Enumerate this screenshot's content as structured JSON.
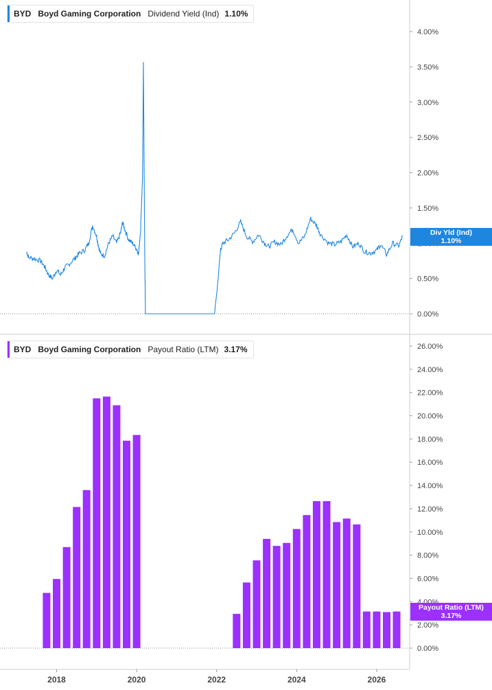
{
  "colors": {
    "yield": "#1f86e0",
    "payout": "#9b30ff",
    "grid": "#888888",
    "axis": "#cccccc",
    "text": "#444444"
  },
  "top_legend": {
    "ticker": "BYD",
    "company": "Boyd Gaming Corporation",
    "metric": "Dividend Yield (Ind)",
    "value": "1.10%"
  },
  "bottom_legend": {
    "ticker": "BYD",
    "company": "Boyd Gaming Corporation",
    "metric": "Payout Ratio (LTM)",
    "value": "3.17%"
  },
  "top_tag": {
    "label": "Div Yld (Ind)",
    "value": "1.10%"
  },
  "bottom_tag": {
    "label": "Payout Ratio (LTM)",
    "value": "3.17%"
  },
  "chart_data": [
    {
      "type": "line",
      "ylim": [
        0,
        4
      ],
      "yticks": [
        "0.00%",
        "0.50%",
        "1.00%",
        "1.50%",
        "2.00%",
        "2.50%",
        "3.00%",
        "3.50%",
        "4.00%"
      ],
      "ytick_values": [
        0,
        0.5,
        1,
        1.5,
        2,
        2.5,
        3,
        3.5,
        4
      ],
      "xlim": [
        2017.0,
        2027.0
      ],
      "series": [
        {
          "x": [
            2017.25,
            2017.3,
            2017.45,
            2017.6,
            2017.7,
            2017.8,
            2017.9,
            2018.0,
            2018.1,
            2018.2,
            2018.3,
            2018.45,
            2018.55,
            2018.7,
            2018.8,
            2018.9,
            2019.0,
            2019.05,
            2019.1,
            2019.2,
            2019.3,
            2019.4,
            2019.5,
            2019.6,
            2019.65,
            2019.7,
            2019.8,
            2019.9,
            2020.0,
            2020.05,
            2020.1,
            2020.15,
            2020.17,
            2020.2,
            2020.22,
            2020.25,
            2021.95,
            2022.1,
            2022.15,
            2022.3,
            2022.45,
            2022.6,
            2022.75,
            2022.9,
            2023.05,
            2023.2,
            2023.3,
            2023.45,
            2023.6,
            2023.75,
            2023.9,
            2024.05,
            2024.2,
            2024.35,
            2024.5,
            2024.6,
            2024.8,
            2024.95,
            2025.1,
            2025.25,
            2025.4,
            2025.55,
            2025.7,
            2025.85,
            2026.0,
            2026.1,
            2026.25,
            2026.4,
            2026.55,
            2026.65
          ],
          "y": [
            0.88,
            0.8,
            0.78,
            0.75,
            0.67,
            0.55,
            0.5,
            0.62,
            0.55,
            0.65,
            0.7,
            0.78,
            0.85,
            0.9,
            1.0,
            1.25,
            1.1,
            0.95,
            0.85,
            0.82,
            1.0,
            1.1,
            1.0,
            1.15,
            1.3,
            1.2,
            1.05,
            1.0,
            0.92,
            0.85,
            1.2,
            2.0,
            3.57,
            1.0,
            0.0,
            0.0,
            0.0,
            0.9,
            1.0,
            1.05,
            1.15,
            1.3,
            1.1,
            1.02,
            1.12,
            1.0,
            0.95,
            1.02,
            0.98,
            1.1,
            1.2,
            1.0,
            1.1,
            1.35,
            1.25,
            1.12,
            1.0,
            0.98,
            1.02,
            1.12,
            0.95,
            1.0,
            0.88,
            0.86,
            0.9,
            0.98,
            0.84,
            1.0,
            0.96,
            1.1
          ]
        }
      ]
    },
    {
      "type": "bar",
      "ylim": [
        0,
        26
      ],
      "yticks": [
        "0.00%",
        "2.00%",
        "4.00%",
        "6.00%",
        "8.00%",
        "10.00%",
        "12.00%",
        "14.00%",
        "16.00%",
        "18.00%",
        "20.00%",
        "22.00%",
        "24.00%",
        "26.00%"
      ],
      "ytick_values": [
        0,
        2,
        4,
        6,
        8,
        10,
        12,
        14,
        16,
        18,
        20,
        22,
        24,
        26
      ],
      "xlim": [
        2017.0,
        2027.0
      ],
      "xticks": [
        "2018",
        "2020",
        "2022",
        "2024",
        "2026"
      ],
      "xtick_values": [
        2018,
        2020,
        2022,
        2024,
        2026
      ],
      "series": [
        {
          "x": [
            2017.75,
            2018.0,
            2018.25,
            2018.5,
            2018.75,
            2019.0,
            2019.25,
            2019.5,
            2019.75,
            2020.0,
            2022.5,
            2022.75,
            2023.0,
            2023.25,
            2023.5,
            2023.75,
            2024.0,
            2024.25,
            2024.5,
            2024.75,
            2025.0,
            2025.25,
            2025.5,
            2025.75,
            2026.0,
            2026.25,
            2026.5
          ],
          "values": [
            4.75,
            5.95,
            8.7,
            12.15,
            13.6,
            21.5,
            21.65,
            20.9,
            17.85,
            18.35,
            2.95,
            5.65,
            7.55,
            9.4,
            8.8,
            9.05,
            10.25,
            11.45,
            12.65,
            12.65,
            10.85,
            11.15,
            10.65,
            3.15,
            3.15,
            3.1,
            3.15
          ]
        }
      ]
    }
  ]
}
